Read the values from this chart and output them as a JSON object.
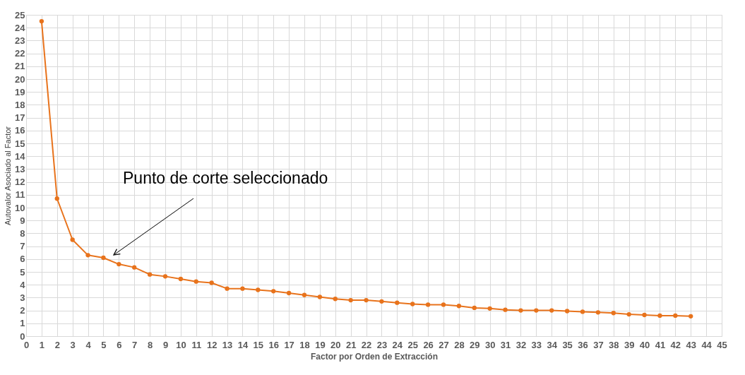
{
  "chart_data": {
    "type": "line",
    "xlabel": "Factor por Orden de Extracción",
    "ylabel": "Autovalor Asociado al Factor",
    "x": [
      1,
      2,
      3,
      4,
      5,
      6,
      7,
      8,
      9,
      10,
      11,
      12,
      13,
      14,
      15,
      16,
      17,
      18,
      19,
      20,
      21,
      22,
      23,
      24,
      25,
      26,
      27,
      28,
      29,
      30,
      31,
      32,
      33,
      34,
      35,
      36,
      37,
      38,
      39,
      40,
      41,
      42,
      43
    ],
    "series": [
      {
        "color": "#e8731c",
        "values": [
          24.5,
          10.7,
          7.5,
          6.3,
          6.1,
          5.6,
          5.35,
          4.8,
          4.65,
          4.45,
          4.25,
          4.15,
          3.7,
          3.7,
          3.6,
          3.5,
          3.35,
          3.2,
          3.05,
          2.9,
          2.8,
          2.8,
          2.7,
          2.6,
          2.5,
          2.45,
          2.45,
          2.35,
          2.2,
          2.15,
          2.05,
          2.0,
          2.0,
          2.0,
          1.95,
          1.9,
          1.85,
          1.8,
          1.7,
          1.65,
          1.6,
          1.6,
          1.55
        ]
      }
    ],
    "xlim": [
      0,
      45
    ],
    "xticks": [
      0,
      1,
      2,
      3,
      4,
      5,
      6,
      7,
      8,
      9,
      10,
      11,
      12,
      13,
      14,
      15,
      16,
      17,
      18,
      19,
      20,
      21,
      22,
      23,
      24,
      25,
      26,
      27,
      28,
      29,
      30,
      31,
      32,
      33,
      34,
      35,
      36,
      37,
      38,
      39,
      40,
      41,
      42,
      43,
      44,
      45
    ],
    "ylim": [
      0,
      25
    ],
    "yticks": [
      0,
      1,
      2,
      3,
      4,
      5,
      6,
      7,
      8,
      9,
      10,
      11,
      12,
      13,
      14,
      15,
      16,
      17,
      18,
      19,
      20,
      21,
      22,
      23,
      24,
      25
    ],
    "grid": true,
    "marker": "circle",
    "line_style": "solid",
    "annotations": [
      "Punto de corte seleccionado"
    ]
  }
}
